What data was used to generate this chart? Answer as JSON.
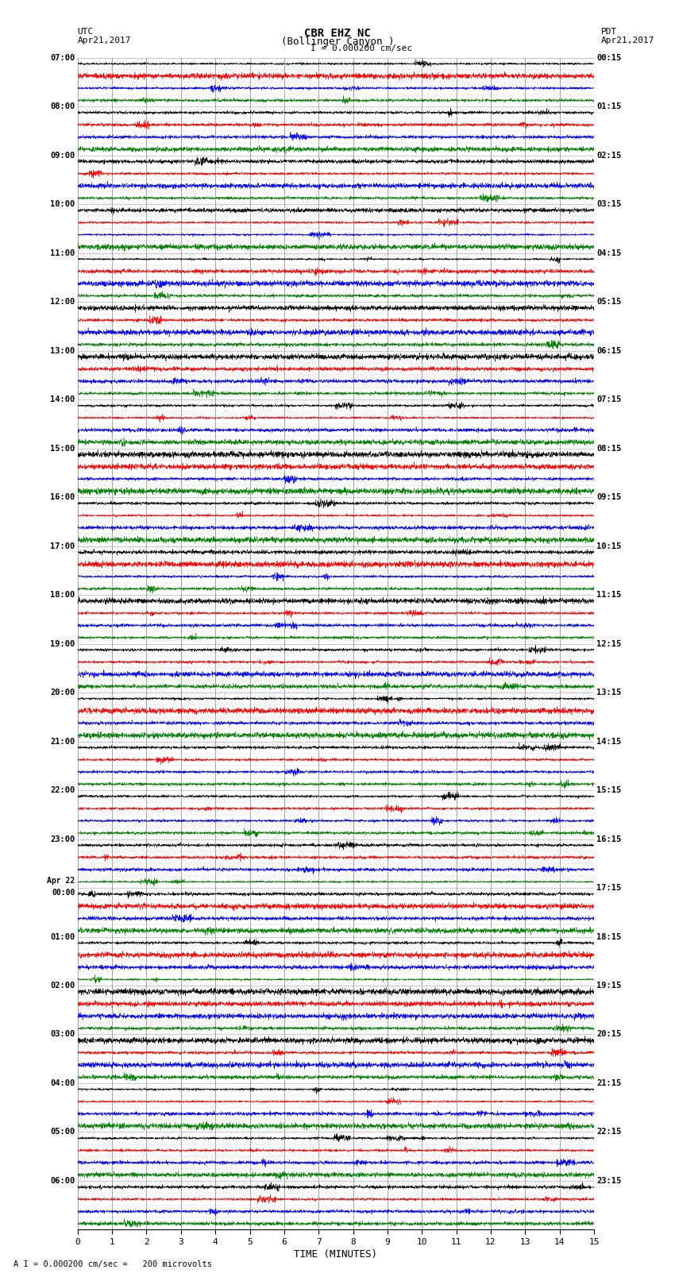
{
  "title_line1": "CBR EHZ NC",
  "title_line2": "(Bollinger Canyon )",
  "scale_label": "I = 0.000200 cm/sec",
  "left_header_line1": "UTC",
  "left_header_line2": "Apr21,2017",
  "right_header_line1": "PDT",
  "right_header_line2": "Apr21,2017",
  "footer_label": "A I = 0.000200 cm/sec =   200 microvolts",
  "xlabel": "TIME (MINUTES)",
  "bg_color": "#ffffff",
  "trace_colors": [
    "black",
    "red",
    "blue",
    "green"
  ],
  "vgrid_color": "#808080",
  "hgrid_color": "#808080",
  "utc_hour_labels": [
    "07:00",
    "08:00",
    "09:00",
    "10:00",
    "11:00",
    "12:00",
    "13:00",
    "14:00",
    "15:00",
    "16:00",
    "17:00",
    "18:00",
    "19:00",
    "20:00",
    "21:00",
    "22:00",
    "23:00",
    "Apr 22\n00:00",
    "01:00",
    "02:00",
    "03:00",
    "04:00",
    "05:00",
    "06:00"
  ],
  "pdt_hour_labels": [
    "00:15",
    "01:15",
    "02:15",
    "03:15",
    "04:15",
    "05:15",
    "06:15",
    "07:15",
    "08:15",
    "09:15",
    "10:15",
    "11:15",
    "12:15",
    "13:15",
    "14:15",
    "15:15",
    "16:15",
    "17:15",
    "18:15",
    "19:15",
    "20:15",
    "21:15",
    "22:15",
    "23:15"
  ],
  "n_rows": 96,
  "n_minutes": 15,
  "base_noise_amp": 0.06,
  "noise_seed": 12345
}
